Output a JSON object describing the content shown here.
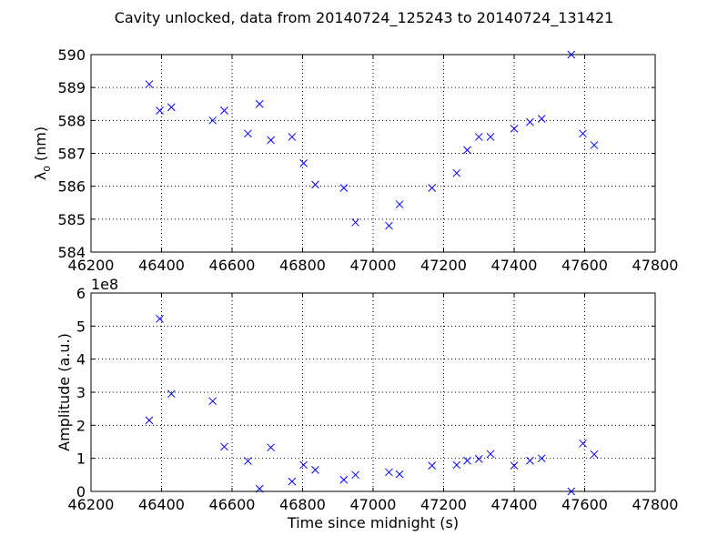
{
  "title": "Cavity unlocked, data from 20140724_125243 to 20140724_131421",
  "chart_data": [
    {
      "type": "scatter",
      "marker": "x",
      "color": "#0000ff",
      "grid": true,
      "xlabel": "",
      "ylabel_main": "λ",
      "ylabel_sub": "0",
      "ylabel_unit": " (nm)",
      "xlim": [
        46200,
        47800
      ],
      "ylim": [
        584,
        590
      ],
      "xticks": [
        "46200",
        "46400",
        "46600",
        "46800",
        "47000",
        "47200",
        "47400",
        "47600",
        "47800"
      ],
      "yticks": [
        "584",
        "585",
        "586",
        "587",
        "588",
        "589",
        "590"
      ],
      "x": [
        46365,
        46395,
        46428,
        46545,
        46578,
        46645,
        46678,
        46710,
        46770,
        46803,
        46836,
        46917,
        46950,
        47045,
        47075,
        47167,
        47237,
        47267,
        47300,
        47333,
        47400,
        47445,
        47478,
        47562,
        47595,
        47627
      ],
      "y": [
        589.1,
        588.3,
        588.4,
        588.0,
        588.3,
        587.6,
        588.5,
        587.4,
        587.5,
        586.7,
        586.05,
        585.95,
        584.9,
        584.8,
        585.45,
        585.95,
        586.4,
        587.1,
        587.5,
        587.5,
        587.75,
        587.95,
        588.05,
        590.0,
        587.6,
        587.25
      ]
    },
    {
      "type": "scatter",
      "marker": "x",
      "color": "#0000ff",
      "grid": true,
      "xlabel": "Time since midnight (s)",
      "ylabel": "Amplitude (a.u.)",
      "offset_label": "1e8",
      "xlim": [
        46200,
        47800
      ],
      "ylim": [
        0,
        6
      ],
      "xticks": [
        "46200",
        "46400",
        "46600",
        "46800",
        "47000",
        "47200",
        "47400",
        "47600",
        "47800"
      ],
      "yticks": [
        "0",
        "1",
        "2",
        "3",
        "4",
        "5",
        "6"
      ],
      "x": [
        46365,
        46395,
        46428,
        46545,
        46578,
        46645,
        46678,
        46710,
        46770,
        46803,
        46836,
        46917,
        46950,
        47045,
        47075,
        47167,
        47237,
        47267,
        47300,
        47333,
        47400,
        47445,
        47478,
        47562,
        47595,
        47627
      ],
      "y": [
        2.15,
        5.22,
        2.95,
        2.73,
        1.35,
        0.92,
        0.08,
        1.33,
        0.3,
        0.8,
        0.65,
        0.35,
        0.5,
        0.58,
        0.52,
        0.78,
        0.8,
        0.93,
        0.98,
        1.13,
        0.78,
        0.93,
        1.0,
        0.0,
        1.45,
        1.12
      ]
    }
  ]
}
